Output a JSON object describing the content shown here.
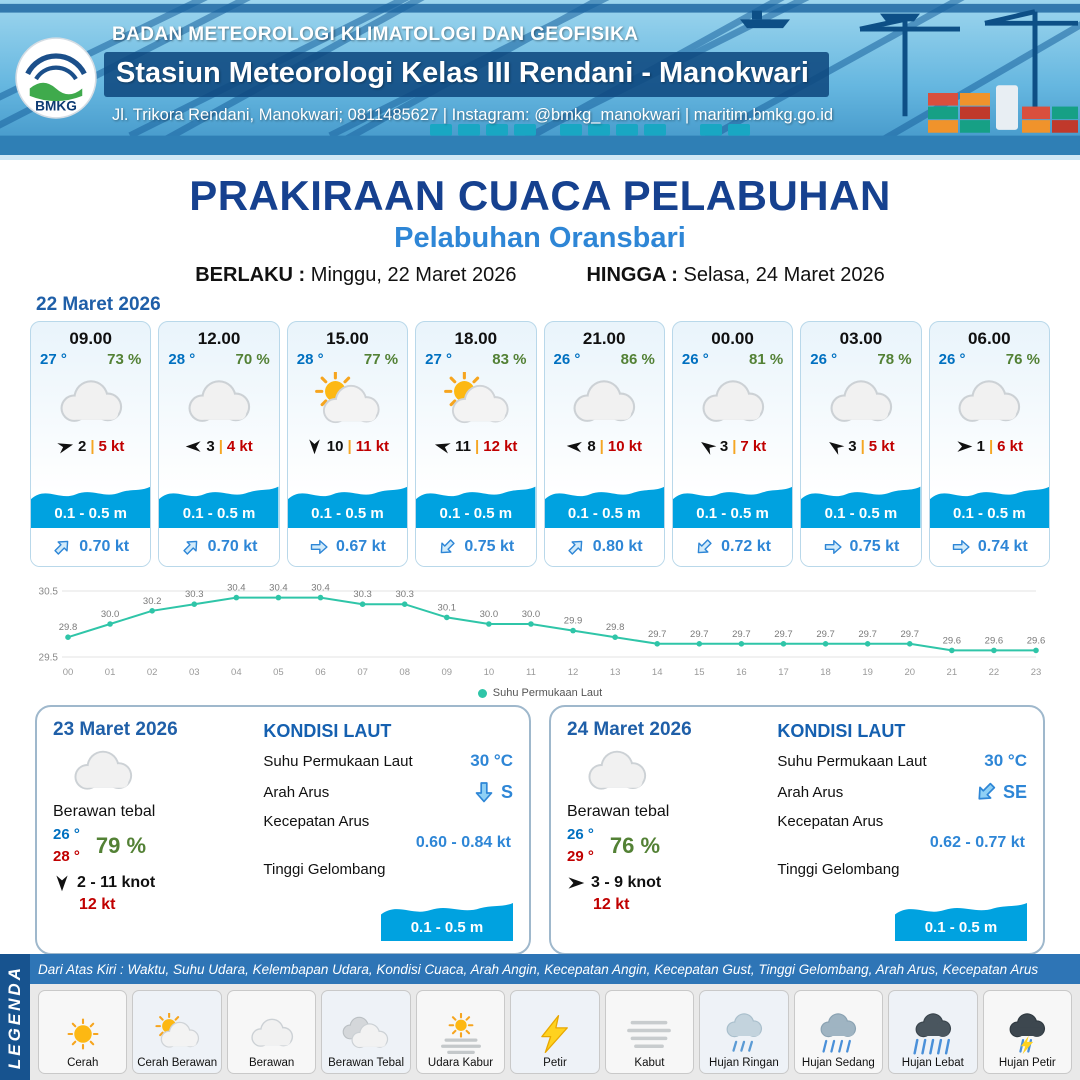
{
  "header": {
    "logo_text": "BMKG",
    "agency": "BADAN METEOROLOGI KLIMATOLOGI DAN GEOFISIKA",
    "station": "Stasiun Meteorologi Kelas III Rendani - Manokwari",
    "contact": "Jl. Trikora Rendani, Manokwari; 0811485627 | Instagram: @bmkg_manokwari | maritim.bmkg.go.id"
  },
  "title": {
    "main": "PRAKIRAAN CUACA PELABUHAN",
    "sub": "Pelabuhan Oransbari",
    "berlaku_label": "BERLAKU :",
    "berlaku_value": "Minggu, 22 Maret 2026",
    "hingga_label": "HINGGA :",
    "hingga_value": "Selasa, 24 Maret 2026"
  },
  "forecast": {
    "date": "22 Maret 2026",
    "cards": [
      {
        "time": "09.00",
        "temp": "27 °",
        "humidity": "73 %",
        "icon": "berawan",
        "wind_deg": -15,
        "wind_speed": "2",
        "gust": "5 kt",
        "wave": "0.1 - 0.5 m",
        "current_deg": -45,
        "current": "0.70 kt"
      },
      {
        "time": "12.00",
        "temp": "28 °",
        "humidity": "70 %",
        "icon": "berawan",
        "wind_deg": 180,
        "wind_speed": "3",
        "gust": "4 kt",
        "wave": "0.1 - 0.5 m",
        "current_deg": -45,
        "current": "0.70 kt"
      },
      {
        "time": "15.00",
        "temp": "28 °",
        "humidity": "77 %",
        "icon": "cerah-berawan",
        "wind_deg": 90,
        "wind_speed": "10",
        "gust": "11 kt",
        "wave": "0.1 - 0.5 m",
        "current_deg": 0,
        "current": "0.67 kt"
      },
      {
        "time": "18.00",
        "temp": "27 °",
        "humidity": "83 %",
        "icon": "cerah-berawan",
        "wind_deg": 195,
        "wind_speed": "11",
        "gust": "12 kt",
        "wave": "0.1 - 0.5 m",
        "current_deg": 135,
        "current": "0.75 kt"
      },
      {
        "time": "21.00",
        "temp": "26 °",
        "humidity": "86 %",
        "icon": "berawan",
        "wind_deg": 185,
        "wind_speed": "8",
        "gust": "10 kt",
        "wave": "0.1 - 0.5 m",
        "current_deg": -45,
        "current": "0.80 kt"
      },
      {
        "time": "00.00",
        "temp": "26 °",
        "humidity": "81 %",
        "icon": "berawan",
        "wind_deg": 215,
        "wind_speed": "3",
        "gust": "7 kt",
        "wave": "0.1 - 0.5 m",
        "current_deg": 135,
        "current": "0.72 kt"
      },
      {
        "time": "03.00",
        "temp": "26 °",
        "humidity": "78 %",
        "icon": "berawan",
        "wind_deg": 215,
        "wind_speed": "3",
        "gust": "5 kt",
        "wave": "0.1 - 0.5 m",
        "current_deg": 0,
        "current": "0.75 kt"
      },
      {
        "time": "06.00",
        "temp": "26 °",
        "humidity": "76 %",
        "icon": "berawan",
        "wind_deg": 0,
        "wind_speed": "1",
        "gust": "6 kt",
        "wave": "0.1 - 0.5 m",
        "current_deg": 0,
        "current": "0.74 kt"
      }
    ]
  },
  "chart_data": {
    "type": "line",
    "x": [
      "00",
      "01",
      "02",
      "03",
      "04",
      "05",
      "06",
      "07",
      "08",
      "09",
      "10",
      "11",
      "12",
      "13",
      "14",
      "15",
      "16",
      "17",
      "18",
      "19",
      "20",
      "21",
      "22",
      "23"
    ],
    "series": [
      {
        "name": "Suhu Permukaan Laut",
        "values": [
          29.8,
          30.0,
          30.2,
          30.3,
          30.4,
          30.4,
          30.4,
          30.3,
          30.3,
          30.1,
          30.0,
          30.0,
          29.9,
          29.8,
          29.7,
          29.7,
          29.7,
          29.7,
          29.7,
          29.7,
          29.7,
          29.6,
          29.6,
          29.6
        ]
      }
    ],
    "ylim": [
      29.5,
      30.5
    ],
    "yticks": [
      "30.5",
      "29.5"
    ],
    "grid": true,
    "line_color": "#2fc5a8",
    "legend": "Suhu Permukaan Laut",
    "legend_position": "bottom",
    "title": "",
    "xlabel": "",
    "ylabel": ""
  },
  "day_cards": [
    {
      "date": "23 Maret 2026",
      "icon": "berawan",
      "condition": "Berawan tebal",
      "temp_min": "26 °",
      "temp_max": "28 °",
      "humidity": "79 %",
      "wind_deg": 90,
      "wind_range": "2  - 11 knot",
      "gust": "12 kt",
      "sea_title": "KONDISI LAUT",
      "sst_label": "Suhu Permukaan Laut",
      "sst_value": "30 °C",
      "current_dir_label": "Arah Arus",
      "current_dir_deg": 90,
      "current_dir": "S",
      "current_speed_label": "Kecepatan Arus",
      "current_speed": "0.60  - 0.84 kt",
      "wave_label": "Tinggi Gelombang",
      "wave": "0.1 - 0.5 m"
    },
    {
      "date": "24 Maret 2026",
      "icon": "berawan",
      "condition": "Berawan tebal",
      "temp_min": "26 °",
      "temp_max": "29 °",
      "humidity": "76 %",
      "wind_deg": 0,
      "wind_range": "3  - 9 knot",
      "gust": "12 kt",
      "sea_title": "KONDISI LAUT",
      "sst_label": "Suhu Permukaan Laut",
      "sst_value": "30 °C",
      "current_dir_label": "Arah Arus",
      "current_dir_deg": 135,
      "current_dir": "SE",
      "current_speed_label": "Kecepatan Arus",
      "current_speed": "0.62  - 0.77 kt",
      "wave_label": "Tinggi Gelombang",
      "wave": "0.1 - 0.5 m"
    }
  ],
  "legend": {
    "title": "LEGENDA",
    "note": "Dari Atas Kiri : Waktu, Suhu Udara, Kelembapan Udara, Kondisi Cuaca, Arah Angin, Kecepatan Angin, Kecepatan Gust, Tinggi Gelombang, Arah Arus, Kecepatan Arus",
    "items": [
      {
        "label": "Cerah",
        "icon": "cerah"
      },
      {
        "label": "Cerah Berawan",
        "icon": "cerah-berawan"
      },
      {
        "label": "Berawan",
        "icon": "berawan"
      },
      {
        "label": "Berawan Tebal",
        "icon": "berawan-tebal"
      },
      {
        "label": "Udara Kabur",
        "icon": "udara-kabur"
      },
      {
        "label": "Petir",
        "icon": "petir"
      },
      {
        "label": "Kabut",
        "icon": "kabut"
      },
      {
        "label": "Hujan Ringan",
        "icon": "hujan-ringan"
      },
      {
        "label": "Hujan Sedang",
        "icon": "hujan-sedang"
      },
      {
        "label": "Hujan Lebat",
        "icon": "hujan-lebat"
      },
      {
        "label": "Hujan Petir",
        "icon": "hujan-petir"
      }
    ]
  }
}
